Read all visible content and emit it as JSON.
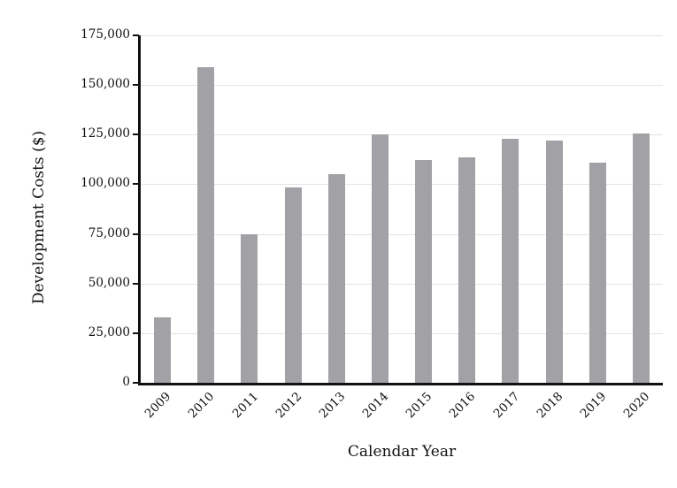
{
  "chart_data": {
    "type": "bar",
    "title": "",
    "xlabel": "Calendar Year",
    "ylabel": "Development Costs ($)",
    "categories": [
      "2009",
      "2010",
      "2011",
      "2012",
      "2013",
      "2014",
      "2015",
      "2016",
      "2017",
      "2018",
      "2019",
      "2020"
    ],
    "values": [
      33000,
      159000,
      75000,
      98500,
      105000,
      125000,
      112000,
      113500,
      123000,
      122000,
      111000,
      125500
    ],
    "ylim": [
      0,
      175000
    ],
    "yticks": [
      {
        "value": 0,
        "label": "0"
      },
      {
        "value": 25000,
        "label": "25,000"
      },
      {
        "value": 50000,
        "label": "50,000"
      },
      {
        "value": 75000,
        "label": "75,000"
      },
      {
        "value": 100000,
        "label": "100,000"
      },
      {
        "value": 125000,
        "label": "125,000"
      },
      {
        "value": 150000,
        "label": "150,000"
      },
      {
        "value": 175000,
        "label": "175,000"
      }
    ],
    "grid": "horizontal",
    "legend": "none",
    "xtick_rotation_deg": -45,
    "colors": {
      "bar": "#a1a1a6",
      "gridline": "#e3e3e3",
      "axis": "#111111",
      "text": "#111111",
      "background": "#ffffff"
    }
  }
}
